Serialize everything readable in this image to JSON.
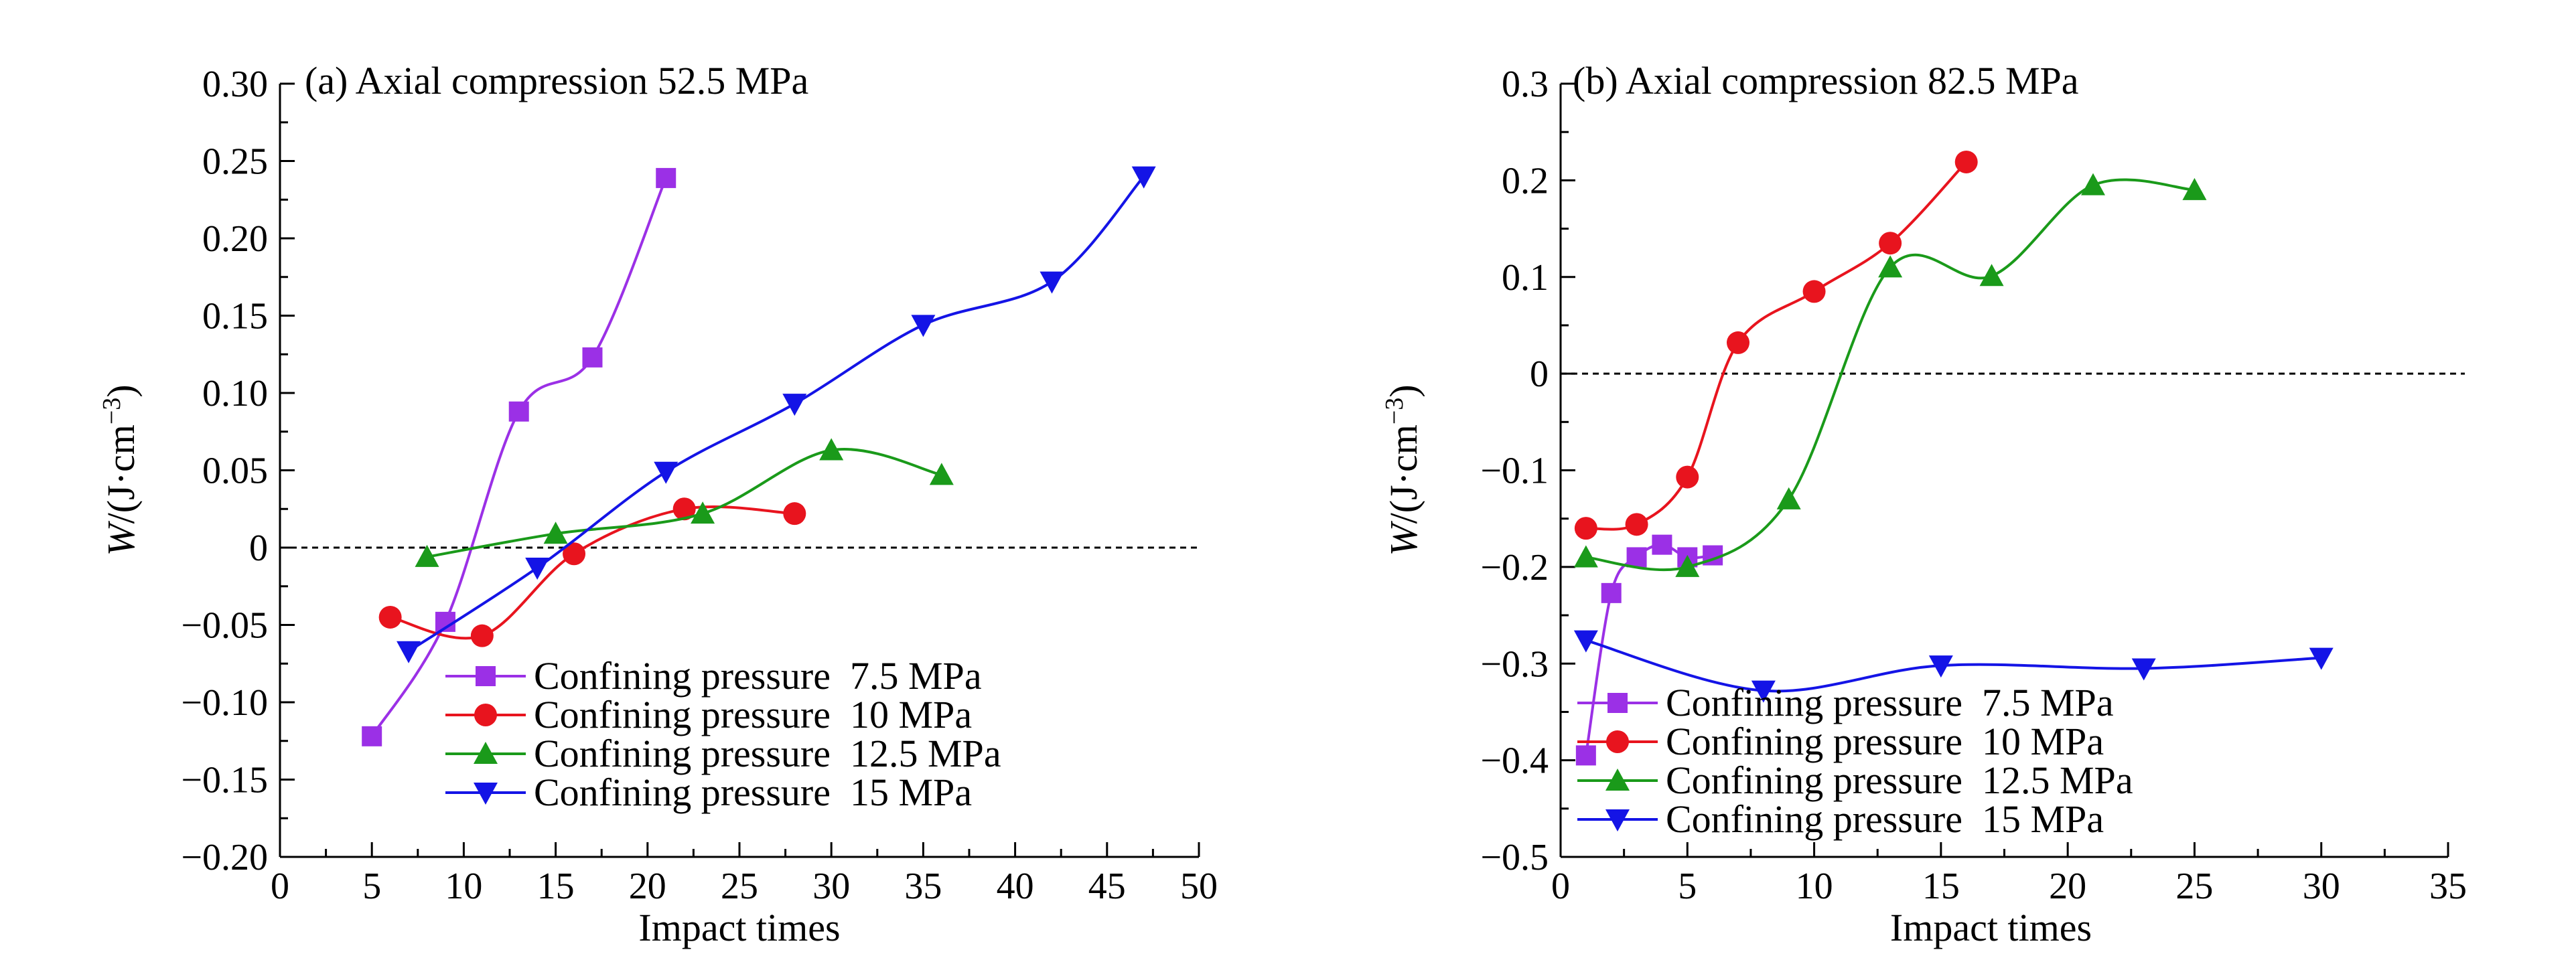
{
  "chart_data": [
    {
      "type": "line",
      "title": "(a) Axial compression 52.5 MPa",
      "xlabel": "Impact times",
      "ylabel": "W/(J·cm⁻³)",
      "ylabel_parts": {
        "var": "W",
        "open": "/(J·cm",
        "sup": "−3",
        "close": ")"
      },
      "xlim": [
        0,
        50
      ],
      "ylim": [
        -0.2,
        0.3
      ],
      "xticks": [
        0,
        5,
        10,
        15,
        20,
        25,
        30,
        35,
        40,
        45,
        50
      ],
      "yticks": [
        -0.2,
        -0.15,
        -0.1,
        -0.05,
        0,
        0.05,
        0.1,
        0.15,
        0.2,
        0.25,
        0.3
      ],
      "xtick_labels": [
        "0",
        "5",
        "10",
        "15",
        "20",
        "25",
        "30",
        "35",
        "40",
        "45",
        "50"
      ],
      "ytick_labels": [
        "−0.20",
        "−0.15",
        "−0.10",
        "−0.05",
        "0",
        "0.05",
        "0.10",
        "0.15",
        "0.20",
        "0.25",
        "0.30"
      ],
      "zero_line": true,
      "grid": false,
      "legend_position": "bottom-center",
      "series": [
        {
          "name": "Confining pressure  7.5 MPa",
          "color": "#9b30e6",
          "marker": "square",
          "x": [
            5,
            9,
            13,
            17,
            21
          ],
          "y": [
            -0.122,
            -0.048,
            0.088,
            0.123,
            0.239
          ]
        },
        {
          "name": "Confining pressure  10 MPa",
          "color": "#e8141e",
          "marker": "circle",
          "x": [
            6,
            11,
            16,
            22,
            28
          ],
          "y": [
            -0.045,
            -0.057,
            -0.004,
            0.025,
            0.022
          ]
        },
        {
          "name": "Confining pressure  12.5 MPa",
          "color": "#1a9a1a",
          "marker": "triangle-up",
          "x": [
            8,
            15,
            23,
            30,
            36
          ],
          "y": [
            -0.006,
            0.009,
            0.022,
            0.063,
            0.047
          ]
        },
        {
          "name": "Confining pressure  15 MPa",
          "color": "#1414e6",
          "marker": "triangle-down",
          "x": [
            7,
            14,
            21,
            28,
            35,
            42,
            47
          ],
          "y": [
            -0.067,
            -0.013,
            0.049,
            0.093,
            0.144,
            0.172,
            0.24
          ]
        }
      ]
    },
    {
      "type": "line",
      "title": "(b) Axial compression 82.5 MPa",
      "xlabel": "Impact times",
      "ylabel": "W/(J·cm⁻³)",
      "ylabel_parts": {
        "var": "W",
        "open": "/(J·cm",
        "sup": "−3",
        "close": ")"
      },
      "xlim": [
        0,
        35
      ],
      "ylim": [
        -0.5,
        0.3
      ],
      "xticks": [
        0,
        5,
        10,
        15,
        20,
        25,
        30,
        35
      ],
      "yticks": [
        -0.5,
        -0.4,
        -0.3,
        -0.2,
        -0.1,
        0,
        0.1,
        0.2,
        0.3
      ],
      "xtick_labels": [
        "0",
        "5",
        "10",
        "15",
        "20",
        "25",
        "30",
        "35"
      ],
      "ytick_labels": [
        "−0.5",
        "−0.4",
        "−0.3",
        "−0.2",
        "−0.1",
        "0",
        "0.1",
        "0.2",
        "0.3"
      ],
      "zero_line": true,
      "grid": false,
      "legend_position": "bottom-left",
      "series": [
        {
          "name": "Confining pressure  7.5 MPa",
          "color": "#9b30e6",
          "marker": "square",
          "x": [
            1,
            2,
            3,
            4,
            5,
            6
          ],
          "y": [
            -0.395,
            -0.227,
            -0.19,
            -0.177,
            -0.19,
            -0.188
          ]
        },
        {
          "name": "Confining pressure  10 MPa",
          "color": "#e8141e",
          "marker": "circle",
          "x": [
            1,
            3,
            5,
            7,
            10,
            13,
            16
          ],
          "y": [
            -0.16,
            -0.156,
            -0.107,
            0.032,
            0.085,
            0.135,
            0.219
          ]
        },
        {
          "name": "Confining pressure  12.5 MPa",
          "color": "#1a9a1a",
          "marker": "triangle-up",
          "x": [
            1,
            5,
            9,
            13,
            17,
            21,
            25
          ],
          "y": [
            -0.19,
            -0.2,
            -0.13,
            0.11,
            0.101,
            0.195,
            0.19
          ]
        },
        {
          "name": "Confining pressure  15 MPa",
          "color": "#1414e6",
          "marker": "triangle-down",
          "x": [
            1,
            8,
            15,
            23,
            30
          ],
          "y": [
            -0.276,
            -0.328,
            -0.302,
            -0.305,
            -0.294
          ]
        }
      ]
    }
  ]
}
